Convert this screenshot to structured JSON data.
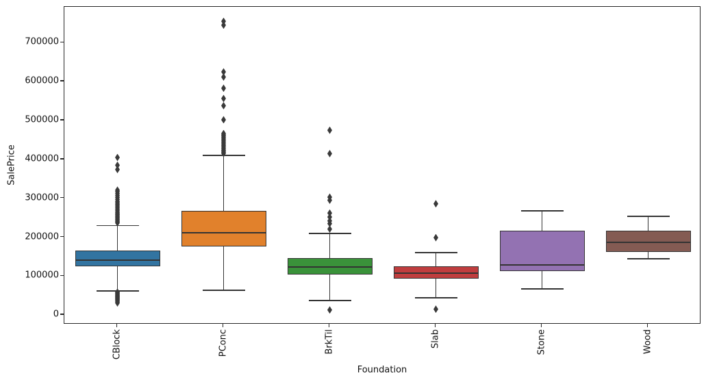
{
  "figure": {
    "background": "#ffffff",
    "axis_color": "#262626",
    "text_color": "#111111",
    "box_line_color": "#333333",
    "flier_color": "#3a3a3a"
  },
  "chart_data": {
    "type": "boxplot",
    "title": "",
    "xlabel": "Foundation",
    "ylabel": "SalePrice",
    "categories": [
      "CBlock",
      "PConc",
      "BrkTil",
      "Slab",
      "Stone",
      "Wood"
    ],
    "y_ticks": [
      0,
      100000,
      200000,
      300000,
      400000,
      500000,
      600000,
      700000
    ],
    "ylim": [
      -24320,
      792110
    ],
    "grid": false,
    "legend": "none",
    "series": [
      {
        "name": "CBlock",
        "color": "#3274A1",
        "whisker_low": 62000,
        "q1": 124500,
        "median": 141500,
        "q3": 166500,
        "whisker_high": 230000,
        "outliers": [
          31000,
          34000,
          37000,
          39000,
          41000,
          43000,
          45000,
          47000,
          49000,
          51000,
          53000,
          55000,
          57000,
          59000,
          237000,
          240000,
          243000,
          246000,
          249000,
          252000,
          255000,
          258000,
          261000,
          264000,
          268000,
          272000,
          276000,
          280000,
          284000,
          288000,
          292000,
          297000,
          302000,
          307000,
          312000,
          317000,
          321000,
          374000,
          385000,
          405000
        ]
      },
      {
        "name": "PConc",
        "color": "#E1812C",
        "whisker_low": 63500,
        "q1": 176000,
        "median": 212000,
        "q3": 268000,
        "whisker_high": 410000,
        "outliers": [
          415298,
          418000,
          421000,
          424000,
          428000,
          432000,
          436000,
          440000,
          444000,
          448000,
          452000,
          456000,
          460000,
          463000,
          466500,
          501837,
          538000,
          556581,
          582933,
          611657,
          625000,
          745000,
          755000
        ]
      },
      {
        "name": "BrkTil",
        "color": "#3A923A",
        "whisker_low": 37000,
        "q1": 104000,
        "median": 123500,
        "q3": 147000,
        "whisker_high": 210000,
        "outliers": [
          13000,
          221000,
          235000,
          242000,
          252000,
          262000,
          295000,
          303000,
          415000,
          475000
        ]
      },
      {
        "name": "Slab",
        "color": "#C03D3E",
        "whisker_low": 44000,
        "q1": 93000,
        "median": 108000,
        "q3": 125000,
        "whisker_high": 161000,
        "outliers": [
          15000,
          199000,
          286000
        ]
      },
      {
        "name": "Stone",
        "color": "#9372B2",
        "whisker_low": 67000,
        "q1": 112500,
        "median": 129000,
        "q3": 216500,
        "whisker_high": 268000,
        "outliers": []
      },
      {
        "name": "Wood",
        "color": "#845B53",
        "whisker_low": 144000,
        "q1": 161500,
        "median": 187500,
        "q3": 216500,
        "whisker_high": 253000,
        "outliers": []
      }
    ]
  }
}
